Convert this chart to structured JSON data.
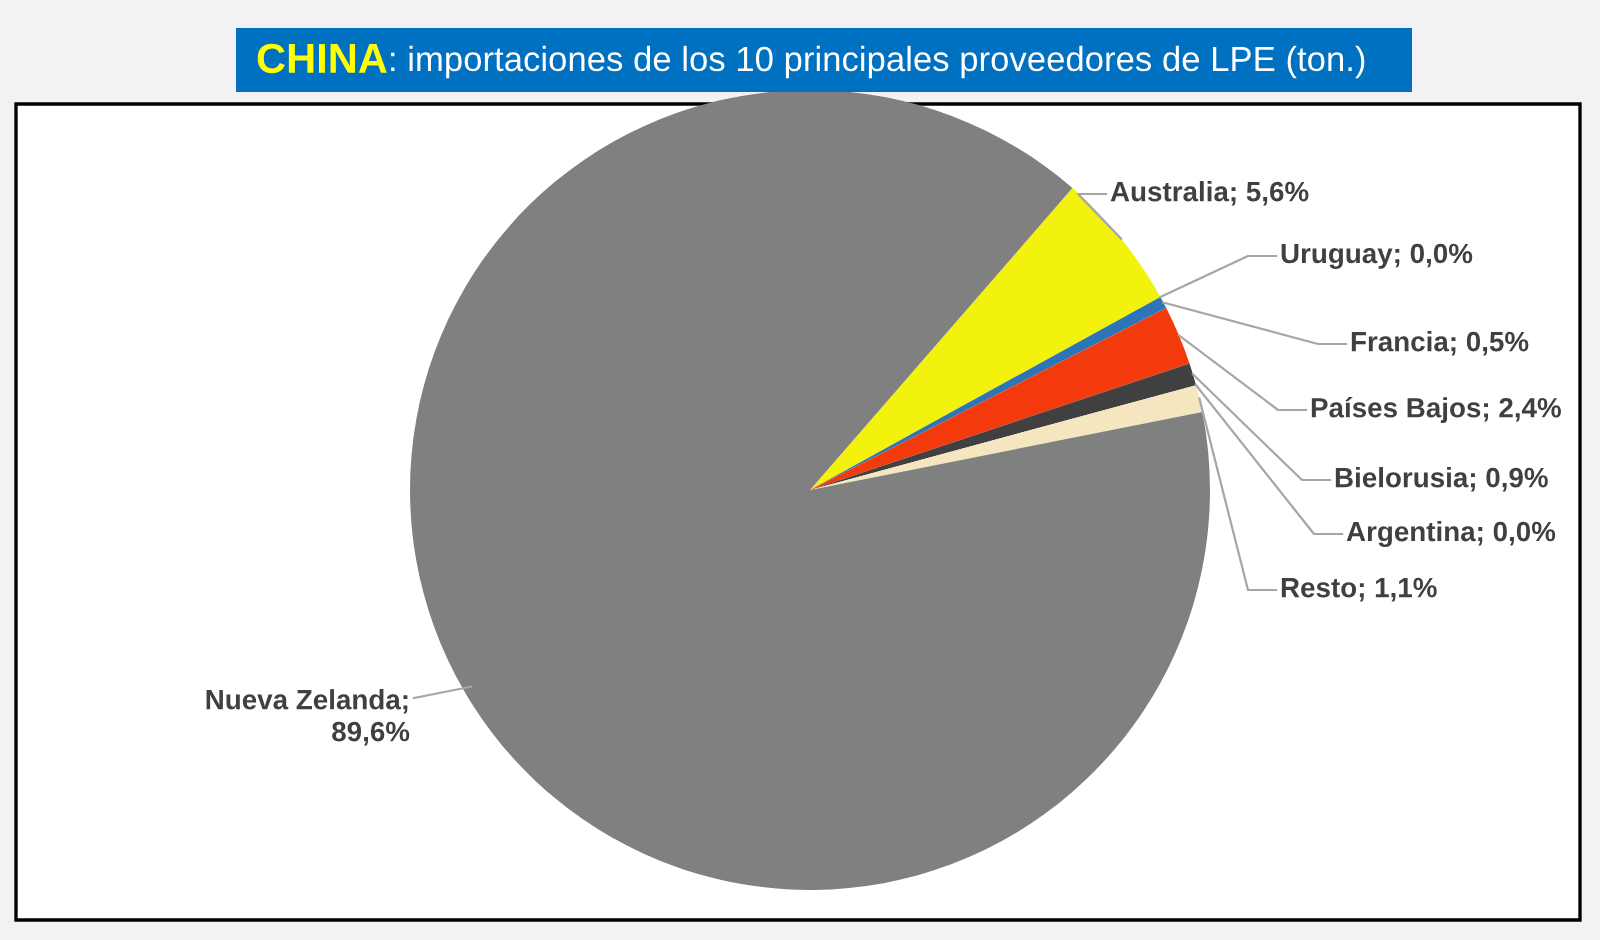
{
  "chart_data": {
    "type": "pie",
    "title": "CHINA: importaciones de los 10 principales proveedores de LPE (ton.)",
    "categories": [
      "Australia",
      "Uruguay",
      "Francia",
      "Países Bajos",
      "Bielorusia",
      "Argentina",
      "Resto",
      "Nueva Zelanda"
    ],
    "values": [
      5.6,
      0.0,
      0.5,
      2.4,
      0.9,
      0.0,
      1.1,
      89.6
    ],
    "value_labels": [
      "; 5,6%",
      "; 0,0%",
      "; 0,5%",
      "; 2,4%",
      "; 0,9%",
      "; 0,0%",
      "; 1,1%",
      "; 89,6%"
    ],
    "colors": [
      "#f2f20c",
      "#4472c4",
      "#2e75b6",
      "#f23a0c",
      "#404040",
      "#a5a5a5",
      "#f5e6c0",
      "#808080"
    ]
  }
}
